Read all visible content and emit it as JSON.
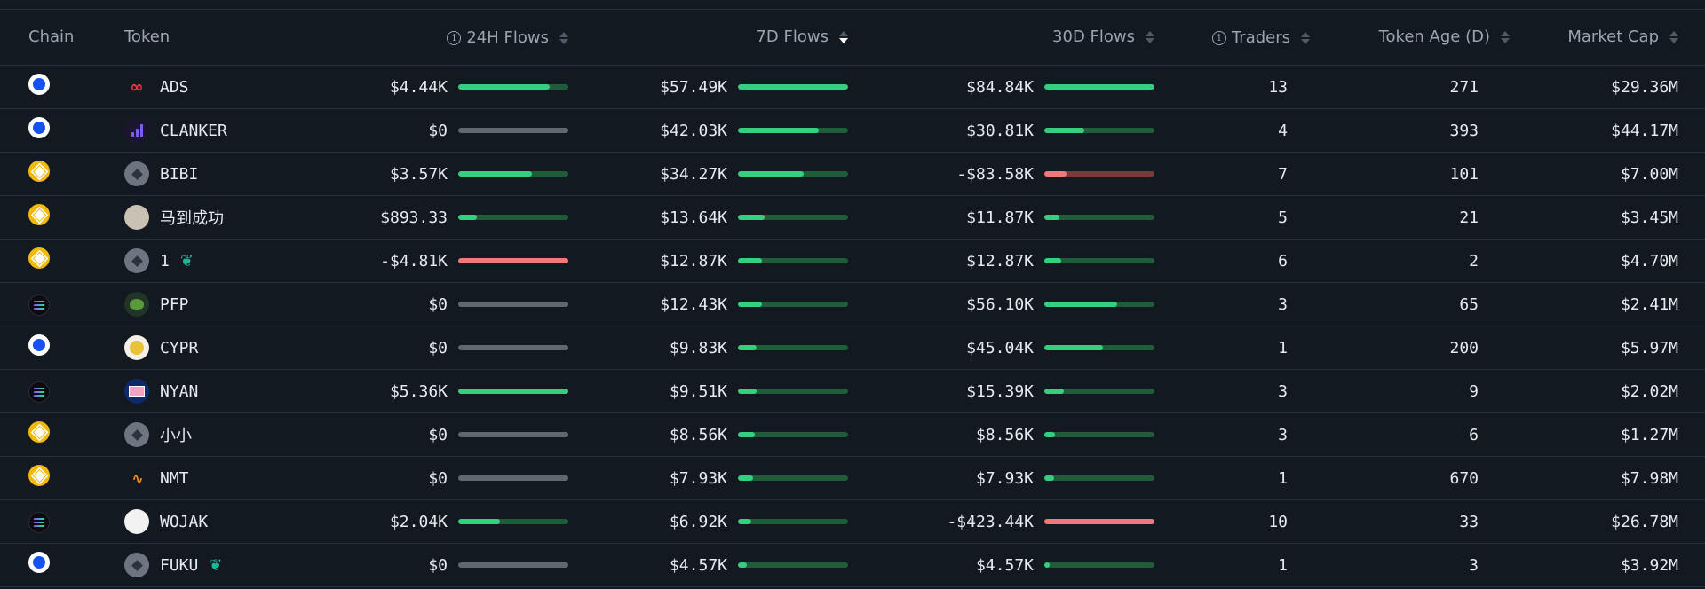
{
  "columns": {
    "chain": "Chain",
    "token": "Token",
    "flows24h": "24H Flows",
    "flows7d": "7D Flows",
    "flows30d": "30D Flows",
    "traders": "Traders",
    "token_age": "Token Age (D)",
    "market_cap": "Market Cap"
  },
  "sort": {
    "column": "7D Flows",
    "direction": "descending"
  },
  "icons": {
    "info": "i",
    "sprout": "❦"
  },
  "rows": [
    {
      "chain": "base",
      "token": "ADS",
      "icon": "ads-logo",
      "f24": "$4.44K",
      "f24_fill": 0.83,
      "f24_sign": "pos",
      "f7": "$57.49K",
      "f7_fill": 1.0,
      "f7_sign": "pos",
      "f30": "$84.84K",
      "f30_fill": 1.0,
      "f30_sign": "pos",
      "traders": "13",
      "age": "271",
      "mcap": "$29.36M"
    },
    {
      "chain": "base",
      "token": "CLANKER",
      "icon": "clanker-logo",
      "f24": "$0",
      "f24_fill": 0,
      "f24_sign": "zero",
      "f7": "$42.03K",
      "f7_fill": 0.73,
      "f7_sign": "pos",
      "f30": "$30.81K",
      "f30_fill": 0.36,
      "f30_sign": "pos",
      "traders": "4",
      "age": "393",
      "mcap": "$44.17M"
    },
    {
      "chain": "bnb",
      "token": "BIBI",
      "icon": "placeholder",
      "f24": "$3.57K",
      "f24_fill": 0.67,
      "f24_sign": "pos",
      "f7": "$34.27K",
      "f7_fill": 0.6,
      "f7_sign": "pos",
      "f30": "-$83.58K",
      "f30_fill": 0.2,
      "f30_sign": "neg",
      "traders": "7",
      "age": "101",
      "mcap": "$7.00M"
    },
    {
      "chain": "bnb",
      "token": "马到成功",
      "icon": "horse-logo",
      "f24": "$893.33",
      "f24_fill": 0.17,
      "f24_sign": "pos",
      "f7": "$13.64K",
      "f7_fill": 0.24,
      "f7_sign": "pos",
      "f30": "$11.87K",
      "f30_fill": 0.14,
      "f30_sign": "pos",
      "traders": "5",
      "age": "21",
      "mcap": "$3.45M"
    },
    {
      "chain": "bnb",
      "token": "1",
      "icon": "placeholder",
      "sprout": true,
      "f24": "-$4.81K",
      "f24_fill": 1.0,
      "f24_sign": "neg",
      "f7": "$12.87K",
      "f7_fill": 0.22,
      "f7_sign": "pos",
      "f30": "$12.87K",
      "f30_fill": 0.15,
      "f30_sign": "pos",
      "traders": "6",
      "age": "2",
      "mcap": "$4.70M"
    },
    {
      "chain": "sol",
      "token": "PFP",
      "icon": "pepe-logo",
      "f24": "$0",
      "f24_fill": 0,
      "f24_sign": "zero",
      "f7": "$12.43K",
      "f7_fill": 0.22,
      "f7_sign": "pos",
      "f30": "$56.10K",
      "f30_fill": 0.66,
      "f30_sign": "pos",
      "traders": "3",
      "age": "65",
      "mcap": "$2.41M"
    },
    {
      "chain": "base",
      "token": "CYPR",
      "icon": "cypr-logo",
      "f24": "$0",
      "f24_fill": 0,
      "f24_sign": "zero",
      "f7": "$9.83K",
      "f7_fill": 0.17,
      "f7_sign": "pos",
      "f30": "$45.04K",
      "f30_fill": 0.53,
      "f30_sign": "pos",
      "traders": "1",
      "age": "200",
      "mcap": "$5.97M"
    },
    {
      "chain": "sol",
      "token": "NYAN",
      "icon": "nyan-logo",
      "f24": "$5.36K",
      "f24_fill": 1.0,
      "f24_sign": "pos",
      "f7": "$9.51K",
      "f7_fill": 0.17,
      "f7_sign": "pos",
      "f30": "$15.39K",
      "f30_fill": 0.18,
      "f30_sign": "pos",
      "traders": "3",
      "age": "9",
      "mcap": "$2.02M"
    },
    {
      "chain": "bnb",
      "token": "小小",
      "icon": "placeholder",
      "f24": "$0",
      "f24_fill": 0,
      "f24_sign": "zero",
      "f7": "$8.56K",
      "f7_fill": 0.15,
      "f7_sign": "pos",
      "f30": "$8.56K",
      "f30_fill": 0.1,
      "f30_sign": "pos",
      "traders": "3",
      "age": "6",
      "mcap": "$1.27M"
    },
    {
      "chain": "bnb",
      "token": "NMT",
      "icon": "nmt-logo",
      "f24": "$0",
      "f24_fill": 0,
      "f24_sign": "zero",
      "f7": "$7.93K",
      "f7_fill": 0.14,
      "f7_sign": "pos",
      "f30": "$7.93K",
      "f30_fill": 0.09,
      "f30_sign": "pos",
      "traders": "1",
      "age": "670",
      "mcap": "$7.98M"
    },
    {
      "chain": "sol",
      "token": "WOJAK",
      "icon": "wojak-logo",
      "f24": "$2.04K",
      "f24_fill": 0.38,
      "f24_sign": "pos",
      "f7": "$6.92K",
      "f7_fill": 0.12,
      "f7_sign": "pos",
      "f30": "-$423.44K",
      "f30_fill": 1.0,
      "f30_sign": "neg",
      "traders": "10",
      "age": "33",
      "mcap": "$26.78M"
    },
    {
      "chain": "base",
      "token": "FUKU",
      "icon": "placeholder",
      "sprout": true,
      "f24": "$0",
      "f24_fill": 0,
      "f24_sign": "zero",
      "f7": "$4.57K",
      "f7_fill": 0.08,
      "f7_sign": "pos",
      "f30": "$4.57K",
      "f30_fill": 0.05,
      "f30_sign": "pos",
      "traders": "1",
      "age": "3",
      "mcap": "$3.92M"
    }
  ],
  "colors": {
    "positive": "#35d07f",
    "negative": "#f07a7a",
    "background": "#121920",
    "muted": "#9aa5b1"
  }
}
